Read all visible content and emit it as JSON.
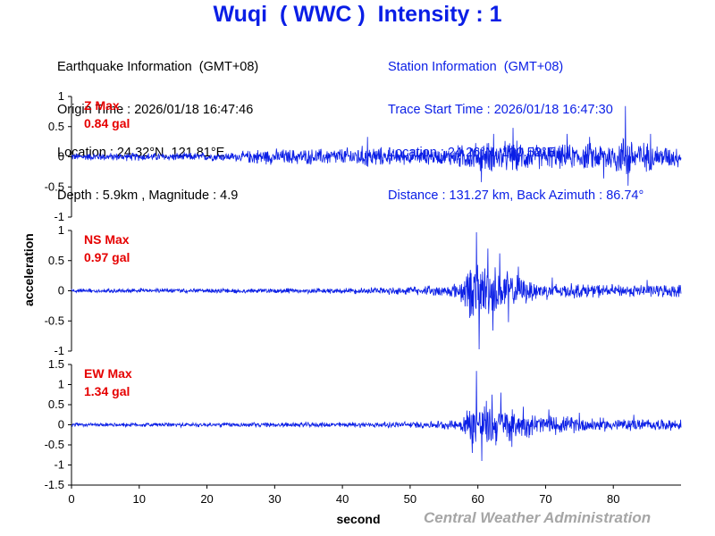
{
  "header": {
    "title": "Wuqi  ( WWC )  Intensity : 1"
  },
  "earthquake_info": {
    "heading": "Earthquake Information  (GMT+08)",
    "origin_time": "Origin Time : 2026/01/18 16:47:46",
    "location": "Location : 24.32°N, 121.81°E",
    "depth_magnitude": "Depth : 5.9km , Magnitude : 4.9"
  },
  "station_info": {
    "heading": "Station Information  (GMT+08)",
    "trace_start": "Trace Start Time : 2026/01/18 16:47:30",
    "location": "Location : 24.26°N, 120.52°E",
    "distance": "Distance : 131.27 km, Back Azimuth : 86.74°"
  },
  "footer": {
    "credit": "Central Weather Administration"
  },
  "colors": {
    "trace": "#0a1ee6",
    "title": "#0a1ee6",
    "max_label": "#e60000",
    "axis": "#000000",
    "credit": "#a6a6a6"
  },
  "chart_data": {
    "type": "line",
    "xlabel": "second",
    "ylabel": "acceleration",
    "xlim": [
      0,
      90
    ],
    "x_ticks": [
      0,
      10,
      20,
      30,
      40,
      50,
      60,
      70,
      80
    ],
    "grid": false,
    "panels": [
      {
        "name": "Z Max",
        "max_value": "0.84 gal",
        "ylim": [
          -1,
          1
        ],
        "y_ticks": [
          -1,
          -0.5,
          0,
          0.5,
          1
        ],
        "y_tick_labels": [
          "-1",
          "-0.5",
          "0",
          "0.5",
          "1"
        ],
        "envelope": [
          [
            0,
            0.07
          ],
          [
            10,
            0.08
          ],
          [
            20,
            0.08
          ],
          [
            25,
            0.09
          ],
          [
            27,
            0.15
          ],
          [
            35,
            0.15
          ],
          [
            40,
            0.17
          ],
          [
            44,
            0.22
          ],
          [
            47,
            0.15
          ],
          [
            55,
            0.15
          ],
          [
            57,
            0.22
          ],
          [
            60,
            0.28
          ],
          [
            65,
            0.3
          ],
          [
            70,
            0.22
          ],
          [
            75,
            0.24
          ],
          [
            80,
            0.3
          ],
          [
            82,
            0.45
          ],
          [
            84,
            0.3
          ],
          [
            87,
            0.22
          ],
          [
            90,
            0.2
          ]
        ],
        "peaks": [
          [
            81.8,
            0.84
          ],
          [
            82.2,
            -0.48
          ],
          [
            65.2,
            0.48
          ],
          [
            60.5,
            -0.42
          ],
          [
            73.2,
            0.38
          ],
          [
            62.3,
            0.38
          ],
          [
            85.5,
            0.38
          ],
          [
            78.6,
            -0.36
          ],
          [
            76.5,
            0.33
          ],
          [
            43.7,
            0.33
          ]
        ]
      },
      {
        "name": "NS Max",
        "max_value": "0.97 gal",
        "ylim": [
          -1,
          1
        ],
        "y_ticks": [
          -1,
          -0.5,
          0,
          0.5,
          1
        ],
        "y_tick_labels": [
          "-1",
          "-0.5",
          "0",
          "0.5",
          "1"
        ],
        "envelope": [
          [
            0,
            0.04
          ],
          [
            30,
            0.05
          ],
          [
            40,
            0.05
          ],
          [
            48,
            0.08
          ],
          [
            54,
            0.1
          ],
          [
            57,
            0.15
          ],
          [
            58.5,
            0.45
          ],
          [
            60,
            0.55
          ],
          [
            62,
            0.5
          ],
          [
            64,
            0.4
          ],
          [
            66,
            0.28
          ],
          [
            70,
            0.16
          ],
          [
            80,
            0.12
          ],
          [
            90,
            0.12
          ]
        ],
        "peaks": [
          [
            59.8,
            0.97
          ],
          [
            60.2,
            -0.97
          ],
          [
            61.5,
            0.7
          ],
          [
            62.2,
            -0.66
          ],
          [
            63.2,
            0.62
          ],
          [
            64.5,
            -0.52
          ],
          [
            66.0,
            0.4
          ],
          [
            58.8,
            -0.45
          ],
          [
            71.0,
            0.22
          ],
          [
            85.0,
            0.18
          ]
        ]
      },
      {
        "name": "EW Max",
        "max_value": "1.34 gal",
        "ylim": [
          -1.5,
          1.5
        ],
        "y_ticks": [
          -1.5,
          -1,
          -0.5,
          0,
          0.5,
          1,
          1.5
        ],
        "y_tick_labels": [
          "-1.5",
          "-1",
          "-0.5",
          "0",
          "0.5",
          "1",
          "1.5"
        ],
        "envelope": [
          [
            0,
            0.06
          ],
          [
            30,
            0.07
          ],
          [
            45,
            0.08
          ],
          [
            52,
            0.1
          ],
          [
            57,
            0.14
          ],
          [
            58.5,
            0.5
          ],
          [
            60,
            0.7
          ],
          [
            62,
            0.65
          ],
          [
            64,
            0.5
          ],
          [
            67,
            0.35
          ],
          [
            72,
            0.25
          ],
          [
            80,
            0.18
          ],
          [
            90,
            0.15
          ]
        ],
        "peaks": [
          [
            59.8,
            1.34
          ],
          [
            60.6,
            -0.9
          ],
          [
            63.4,
            0.8
          ],
          [
            59.2,
            -0.7
          ],
          [
            62.1,
            0.75
          ],
          [
            65.0,
            -0.55
          ],
          [
            66.7,
            0.45
          ],
          [
            70.5,
            0.38
          ],
          [
            75.0,
            0.3
          ],
          [
            83.0,
            0.25
          ]
        ]
      }
    ]
  }
}
